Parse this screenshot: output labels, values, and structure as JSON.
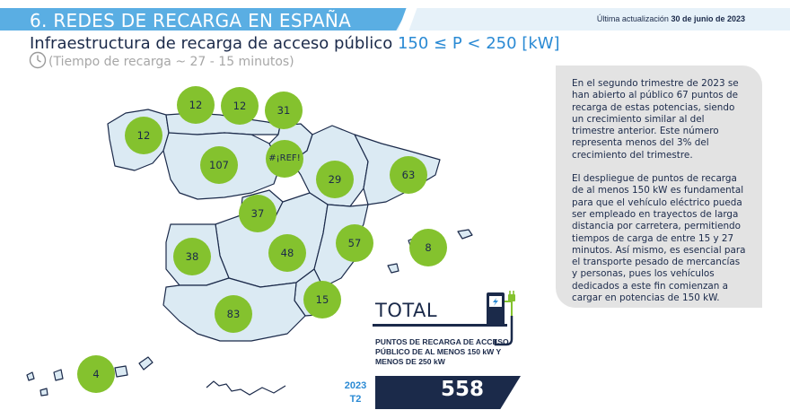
{
  "header": {
    "section_title": "6. REDES DE RECARGA EN ESPAÑA",
    "update_prefix": "Última actualización",
    "update_date": "30 de junio de 2023"
  },
  "title": {
    "main": "Infraestructura de recarga de acceso público",
    "highlight": "150 ≤ P < 250 [kW]",
    "subtitle": "(Tiempo de recarga ~ 27 - 15 minutos)"
  },
  "map": {
    "regions": [
      {
        "name": "Galicia",
        "value": "12"
      },
      {
        "name": "Asturias",
        "value": "12"
      },
      {
        "name": "Cantabria",
        "value": "12"
      },
      {
        "name": "País Vasco",
        "value": "31"
      },
      {
        "name": "Castilla y León",
        "value": "107"
      },
      {
        "name": "La Rioja / Navarra",
        "value": "#¡REF!"
      },
      {
        "name": "Aragón",
        "value": "29"
      },
      {
        "name": "Cataluña",
        "value": "63"
      },
      {
        "name": "Madrid",
        "value": "37"
      },
      {
        "name": "Comunidad Valenciana",
        "value": "57"
      },
      {
        "name": "Islas Baleares",
        "value": "8"
      },
      {
        "name": "Castilla-La Mancha",
        "value": "48"
      },
      {
        "name": "Extremadura",
        "value": "38"
      },
      {
        "name": "Murcia",
        "value": "15"
      },
      {
        "name": "Andalucía",
        "value": "83"
      },
      {
        "name": "Canarias",
        "value": "4"
      }
    ],
    "colors": {
      "fill": "#dbeaf3",
      "stroke": "#1b2a4a",
      "bubble": "#84c22e"
    }
  },
  "info": {
    "paragraph1": "En el segundo trimestre de 2023 se han abierto al público 67 puntos de recarga de estas potencias, siendo un crecimiento similar al del trimestre anterior. Este número representa menos del 3% del crecimiento del trimestre.",
    "paragraph2": "El despliegue de puntos de recarga de al menos 150 kW es fundamental para que el vehículo eléctrico pueda ser empleado en trayectos de larga distancia por carretera, permitiendo tiempos de carga de entre 15 y 27 minutos. Así mismo, es esencial para el transporte pesado de mercancías y personas, pues los vehículos dedicados a este fin comienzan a cargar en potencias de 150 kW."
  },
  "total": {
    "label": "TOTAL",
    "description": "PUNTOS DE RECARGA DE ACCESO PÚBLICO DE AL MENOS 150 kW Y MENOS DE 250 kW",
    "year": "2023",
    "period": "T2",
    "value": "558"
  },
  "icons": [
    "clock-icon",
    "ev-charger-icon"
  ]
}
